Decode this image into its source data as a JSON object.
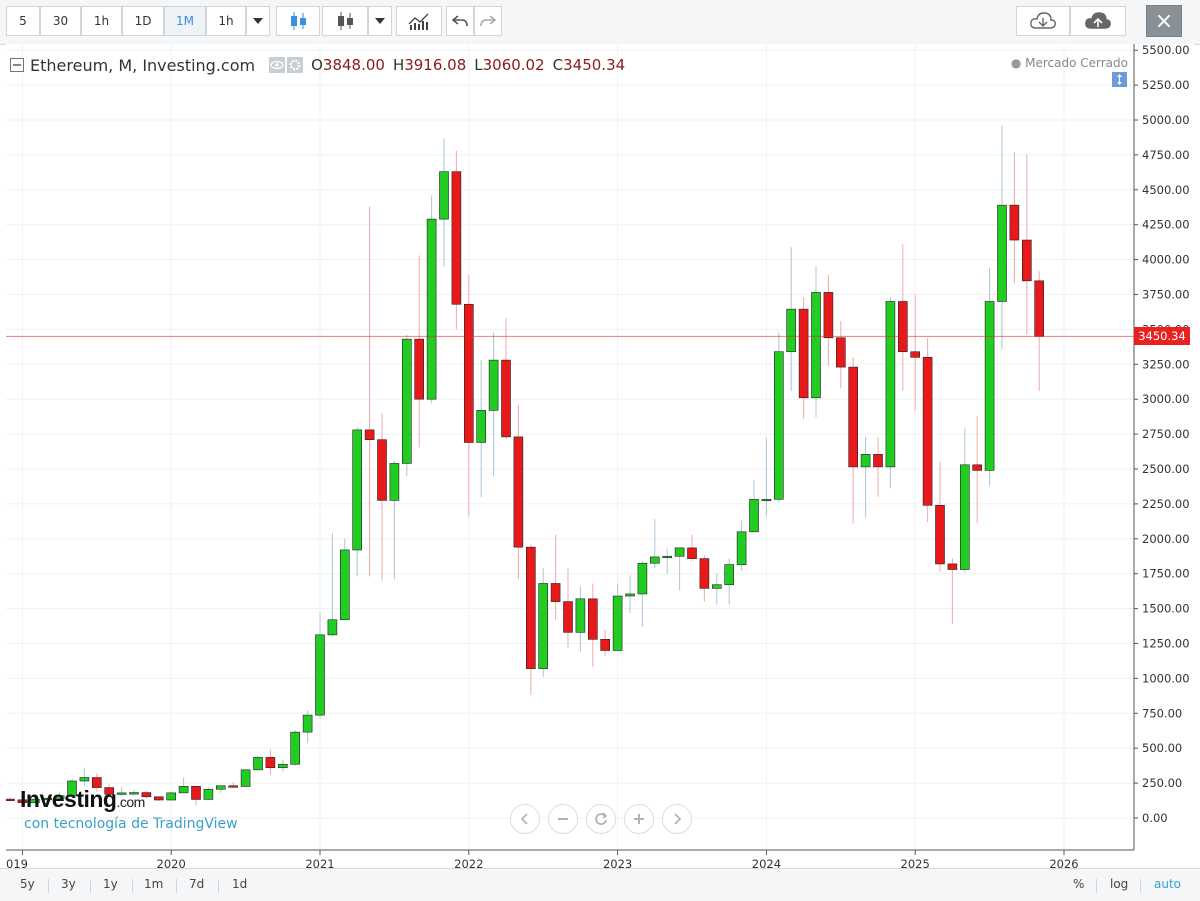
{
  "toolbar": {
    "intervals": [
      "5",
      "30",
      "1h",
      "1D",
      "1M",
      "1h"
    ],
    "active_interval": "1M",
    "close_label": "×"
  },
  "legend": {
    "title": "Ethereum, M, Investing.com",
    "open_label": "O",
    "open": "3848.00",
    "high_label": "H",
    "high": "3916.08",
    "low_label": "L",
    "low": "3060.02",
    "close_label": "C",
    "close": "3450.34"
  },
  "status": "Mercado Cerrado",
  "last_price_tag": "3450.34",
  "branding": {
    "logo": "Investing",
    "logo_suffix": ".com",
    "powered_by": "con tecnología de TradingView"
  },
  "bottom": {
    "ranges": [
      "5y",
      "3y",
      "1y",
      "1m",
      "7d",
      "1d"
    ],
    "percent": "%",
    "log": "log",
    "auto": "auto"
  },
  "colors": {
    "up": "#22cc22",
    "down": "#e8191b",
    "last_price": "#e8231f"
  },
  "chart_data": {
    "type": "candlestick",
    "title": "Ethereum, M, Investing.com",
    "y_ticks": [
      0,
      250,
      500,
      750,
      1000,
      1250,
      1500,
      1750,
      2000,
      2250,
      2500,
      2750,
      3000,
      3250,
      3500,
      3750,
      4000,
      4250,
      4500,
      4750,
      5000,
      5250,
      5500
    ],
    "ylim": [
      0,
      5500
    ],
    "x_ticks": [
      "019",
      "2020",
      "2021",
      "2022",
      "2023",
      "2024",
      "2025",
      "2026"
    ],
    "last_price": 3450.34,
    "candles": [
      {
        "t": "2018-12",
        "o": 135,
        "h": 150,
        "l": 120,
        "c": 130
      },
      {
        "t": "2019-01",
        "o": 130,
        "h": 160,
        "l": 100,
        "c": 110
      },
      {
        "t": "2019-02",
        "o": 110,
        "h": 165,
        "l": 103,
        "c": 135
      },
      {
        "t": "2019-03",
        "o": 135,
        "h": 150,
        "l": 125,
        "c": 141
      },
      {
        "t": "2019-04",
        "o": 141,
        "h": 185,
        "l": 135,
        "c": 160
      },
      {
        "t": "2019-05",
        "o": 160,
        "h": 280,
        "l": 155,
        "c": 265
      },
      {
        "t": "2019-06",
        "o": 265,
        "h": 360,
        "l": 230,
        "c": 290
      },
      {
        "t": "2019-07",
        "o": 290,
        "h": 320,
        "l": 190,
        "c": 218
      },
      {
        "t": "2019-08",
        "o": 218,
        "h": 240,
        "l": 160,
        "c": 170
      },
      {
        "t": "2019-09",
        "o": 170,
        "h": 225,
        "l": 155,
        "c": 180
      },
      {
        "t": "2019-10",
        "o": 180,
        "h": 200,
        "l": 160,
        "c": 182
      },
      {
        "t": "2019-11",
        "o": 182,
        "h": 195,
        "l": 140,
        "c": 152
      },
      {
        "t": "2019-12",
        "o": 152,
        "h": 155,
        "l": 120,
        "c": 129
      },
      {
        "t": "2020-01",
        "o": 129,
        "h": 185,
        "l": 125,
        "c": 180
      },
      {
        "t": "2020-02",
        "o": 180,
        "h": 290,
        "l": 175,
        "c": 227
      },
      {
        "t": "2020-03",
        "o": 227,
        "h": 230,
        "l": 90,
        "c": 133
      },
      {
        "t": "2020-04",
        "o": 133,
        "h": 220,
        "l": 130,
        "c": 206
      },
      {
        "t": "2020-05",
        "o": 206,
        "h": 225,
        "l": 180,
        "c": 231
      },
      {
        "t": "2020-06",
        "o": 231,
        "h": 255,
        "l": 215,
        "c": 226
      },
      {
        "t": "2020-07",
        "o": 226,
        "h": 350,
        "l": 225,
        "c": 345
      },
      {
        "t": "2020-08",
        "o": 345,
        "h": 445,
        "l": 340,
        "c": 434
      },
      {
        "t": "2020-09",
        "o": 434,
        "h": 490,
        "l": 310,
        "c": 360
      },
      {
        "t": "2020-10",
        "o": 360,
        "h": 420,
        "l": 335,
        "c": 385
      },
      {
        "t": "2020-11",
        "o": 385,
        "h": 630,
        "l": 375,
        "c": 615
      },
      {
        "t": "2020-12",
        "o": 615,
        "h": 770,
        "l": 535,
        "c": 737
      },
      {
        "t": "2021-01",
        "o": 737,
        "h": 1475,
        "l": 715,
        "c": 1312
      },
      {
        "t": "2021-02",
        "o": 1312,
        "h": 2040,
        "l": 1300,
        "c": 1420
      },
      {
        "t": "2021-03",
        "o": 1420,
        "h": 2000,
        "l": 1420,
        "c": 1920
      },
      {
        "t": "2021-04",
        "o": 1920,
        "h": 2800,
        "l": 1730,
        "c": 2780
      },
      {
        "t": "2021-05",
        "o": 2780,
        "h": 4380,
        "l": 1730,
        "c": 2710
      },
      {
        "t": "2021-06",
        "o": 2710,
        "h": 2900,
        "l": 1700,
        "c": 2275
      },
      {
        "t": "2021-07",
        "o": 2275,
        "h": 2560,
        "l": 1710,
        "c": 2540
      },
      {
        "t": "2021-08",
        "o": 2540,
        "h": 3460,
        "l": 2450,
        "c": 3430
      },
      {
        "t": "2021-09",
        "o": 3430,
        "h": 4030,
        "l": 2655,
        "c": 3000
      },
      {
        "t": "2021-10",
        "o": 3000,
        "h": 4460,
        "l": 2970,
        "c": 4290
      },
      {
        "t": "2021-11",
        "o": 4290,
        "h": 4870,
        "l": 3950,
        "c": 4630
      },
      {
        "t": "2021-12",
        "o": 4630,
        "h": 4780,
        "l": 3500,
        "c": 3680
      },
      {
        "t": "2022-01",
        "o": 3680,
        "h": 3890,
        "l": 2160,
        "c": 2690
      },
      {
        "t": "2022-02",
        "o": 2690,
        "h": 3280,
        "l": 2300,
        "c": 2920
      },
      {
        "t": "2022-03",
        "o": 2920,
        "h": 3480,
        "l": 2450,
        "c": 3280
      },
      {
        "t": "2022-04",
        "o": 3280,
        "h": 3580,
        "l": 2710,
        "c": 2730
      },
      {
        "t": "2022-05",
        "o": 2730,
        "h": 2960,
        "l": 1710,
        "c": 1940
      },
      {
        "t": "2022-06",
        "o": 1940,
        "h": 1960,
        "l": 880,
        "c": 1070
      },
      {
        "t": "2022-07",
        "o": 1070,
        "h": 1790,
        "l": 1010,
        "c": 1680
      },
      {
        "t": "2022-08",
        "o": 1680,
        "h": 2030,
        "l": 1420,
        "c": 1550
      },
      {
        "t": "2022-09",
        "o": 1550,
        "h": 1790,
        "l": 1220,
        "c": 1330
      },
      {
        "t": "2022-10",
        "o": 1330,
        "h": 1660,
        "l": 1190,
        "c": 1570
      },
      {
        "t": "2022-11",
        "o": 1570,
        "h": 1680,
        "l": 1080,
        "c": 1280
      },
      {
        "t": "2022-12",
        "o": 1280,
        "h": 1350,
        "l": 1160,
        "c": 1200
      },
      {
        "t": "2023-01",
        "o": 1200,
        "h": 1680,
        "l": 1190,
        "c": 1590
      },
      {
        "t": "2023-02",
        "o": 1590,
        "h": 1740,
        "l": 1470,
        "c": 1605
      },
      {
        "t": "2023-03",
        "o": 1605,
        "h": 1840,
        "l": 1370,
        "c": 1825
      },
      {
        "t": "2023-04",
        "o": 1825,
        "h": 2140,
        "l": 1790,
        "c": 1870
      },
      {
        "t": "2023-05",
        "o": 1870,
        "h": 1930,
        "l": 1750,
        "c": 1875
      },
      {
        "t": "2023-06",
        "o": 1875,
        "h": 1930,
        "l": 1630,
        "c": 1935
      },
      {
        "t": "2023-07",
        "o": 1935,
        "h": 2030,
        "l": 1840,
        "c": 1858
      },
      {
        "t": "2023-08",
        "o": 1858,
        "h": 1880,
        "l": 1550,
        "c": 1645
      },
      {
        "t": "2023-09",
        "o": 1645,
        "h": 1750,
        "l": 1530,
        "c": 1671
      },
      {
        "t": "2023-10",
        "o": 1671,
        "h": 1860,
        "l": 1530,
        "c": 1815
      },
      {
        "t": "2023-11",
        "o": 1815,
        "h": 2130,
        "l": 1770,
        "c": 2050
      },
      {
        "t": "2023-12",
        "o": 2050,
        "h": 2420,
        "l": 2050,
        "c": 2282
      },
      {
        "t": "2024-01",
        "o": 2282,
        "h": 2720,
        "l": 2160,
        "c": 2283
      },
      {
        "t": "2024-02",
        "o": 2283,
        "h": 3480,
        "l": 2260,
        "c": 3340
      },
      {
        "t": "2024-03",
        "o": 3340,
        "h": 4090,
        "l": 3060,
        "c": 3645
      },
      {
        "t": "2024-04",
        "o": 3645,
        "h": 3730,
        "l": 2860,
        "c": 3010
      },
      {
        "t": "2024-05",
        "o": 3010,
        "h": 3950,
        "l": 2870,
        "c": 3765
      },
      {
        "t": "2024-06",
        "o": 3765,
        "h": 3890,
        "l": 3240,
        "c": 3440
      },
      {
        "t": "2024-07",
        "o": 3440,
        "h": 3560,
        "l": 3080,
        "c": 3230
      },
      {
        "t": "2024-08",
        "o": 3230,
        "h": 3300,
        "l": 2110,
        "c": 2515
      },
      {
        "t": "2024-09",
        "o": 2515,
        "h": 2730,
        "l": 2150,
        "c": 2605
      },
      {
        "t": "2024-10",
        "o": 2605,
        "h": 2730,
        "l": 2300,
        "c": 2515
      },
      {
        "t": "2024-11",
        "o": 2515,
        "h": 3730,
        "l": 2360,
        "c": 3700
      },
      {
        "t": "2024-12",
        "o": 3700,
        "h": 4110,
        "l": 3060,
        "c": 3340
      },
      {
        "t": "2025-01",
        "o": 3340,
        "h": 3750,
        "l": 2920,
        "c": 3300
      },
      {
        "t": "2025-02",
        "o": 3300,
        "h": 3440,
        "l": 2120,
        "c": 2240
      },
      {
        "t": "2025-03",
        "o": 2240,
        "h": 2550,
        "l": 1760,
        "c": 1820
      },
      {
        "t": "2025-04",
        "o": 1820,
        "h": 1860,
        "l": 1390,
        "c": 1780
      },
      {
        "t": "2025-05",
        "o": 1780,
        "h": 2790,
        "l": 1760,
        "c": 2530
      },
      {
        "t": "2025-06",
        "o": 2530,
        "h": 2880,
        "l": 2110,
        "c": 2490
      },
      {
        "t": "2025-07",
        "o": 2490,
        "h": 3940,
        "l": 2380,
        "c": 3700
      },
      {
        "t": "2025-08",
        "o": 3700,
        "h": 4960,
        "l": 3360,
        "c": 4390
      },
      {
        "t": "2025-09",
        "o": 4390,
        "h": 4770,
        "l": 3830,
        "c": 4140
      },
      {
        "t": "2025-10",
        "o": 4140,
        "h": 4750,
        "l": 3460,
        "c": 3848
      },
      {
        "t": "2025-11",
        "o": 3848.0,
        "h": 3916.08,
        "l": 3060.02,
        "c": 3450.34
      }
    ]
  }
}
